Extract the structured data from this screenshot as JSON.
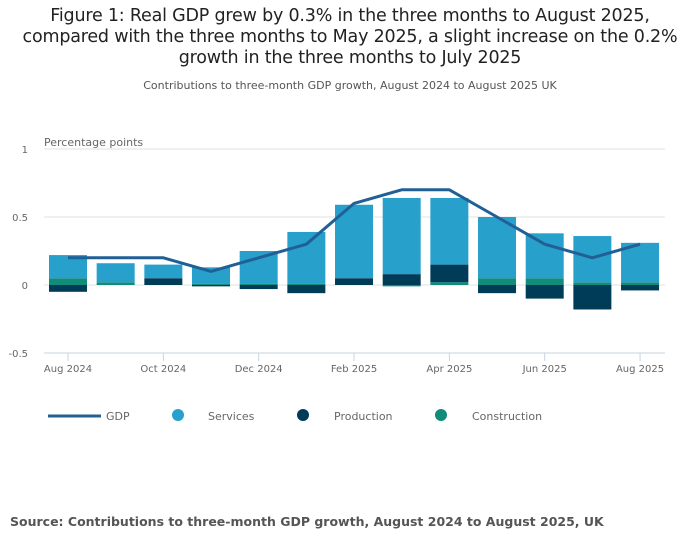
{
  "title": "Figure 1: Real GDP grew by 0.3% in the three months to August 2025, compared with the three months to May 2025, a slight increase on the 0.2% growth in the three months to July 2025",
  "title_lines": [
    "Figure 1: Real GDP grew by 0.3% in the three months to August 2025,",
    "compared with the three months to May 2025, a slight increase on the 0.2%",
    "growth in the three months to July 2025"
  ],
  "subtitle": "Contributions to three-month GDP growth, August 2024 to August 2025 UK",
  "source": "Source: Contributions to three-month GDP growth, August 2024 to August 2025, UK",
  "colors": {
    "gdp": "#206095",
    "services": "#27a0cc",
    "production": "#003c57",
    "construction": "#118c7b",
    "grid": "#e0e0e0",
    "axis": "#c6d4e1"
  },
  "chart_data": {
    "type": "bar",
    "stacked": true,
    "title": "Contributions to three-month GDP growth, August 2024 to August 2025 UK",
    "ylabel": "Percentage points",
    "xlabel": "",
    "ylim": [
      -0.5,
      1
    ],
    "yticks": [
      -0.5,
      0,
      0.5,
      1
    ],
    "ytick_labels": [
      "-0.5",
      "0",
      "0.5",
      "1"
    ],
    "grid": true,
    "legend_position": "bottom",
    "categories": [
      "Aug 2024",
      "Sep 2024",
      "Oct 2024",
      "Nov 2024",
      "Dec 2024",
      "Jan 2025",
      "Feb 2025",
      "Mar 2025",
      "Apr 2025",
      "May 2025",
      "Jun 2025",
      "Jul 2025",
      "Aug 2025"
    ],
    "xtick_labels": [
      "Aug 2024",
      "Oct 2024",
      "Dec 2024",
      "Feb 2025",
      "Apr 2025",
      "Jun 2025",
      "Aug 2025"
    ],
    "series": [
      {
        "name": "Services",
        "type": "bar",
        "values": [
          0.17,
          0.14,
          0.1,
          0.12,
          0.24,
          0.38,
          0.54,
          0.56,
          0.49,
          0.45,
          0.33,
          0.34,
          0.29
        ]
      },
      {
        "name": "Production",
        "type": "bar",
        "values": [
          -0.05,
          0.0,
          0.05,
          -0.01,
          -0.03,
          -0.06,
          0.05,
          0.08,
          0.13,
          -0.06,
          -0.1,
          -0.18,
          -0.04
        ]
      },
      {
        "name": "Construction",
        "type": "bar",
        "values": [
          0.05,
          0.02,
          0.0,
          0.01,
          0.01,
          0.01,
          0.0,
          -0.01,
          0.02,
          0.05,
          0.05,
          0.02,
          0.02
        ]
      },
      {
        "name": "GDP",
        "type": "line",
        "values": [
          0.2,
          0.2,
          0.2,
          0.1,
          0.2,
          0.3,
          0.6,
          0.7,
          0.7,
          0.5,
          0.3,
          0.2,
          0.3
        ]
      }
    ],
    "legend": [
      "GDP",
      "Services",
      "Production",
      "Construction"
    ]
  }
}
